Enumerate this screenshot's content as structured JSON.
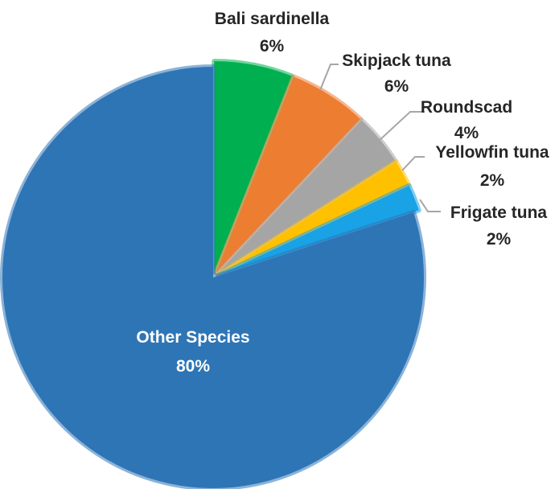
{
  "chart_data": {
    "type": "pie",
    "title": "",
    "start_angle_deg": 0,
    "direction": "clockwise",
    "slices": [
      {
        "label": "Bali sardinella",
        "value": 6,
        "display": "6%",
        "color": "#00b050"
      },
      {
        "label": "Skipjack tuna",
        "value": 6,
        "display": "6%",
        "color": "#ed7d31"
      },
      {
        "label": "Roundscad",
        "value": 4,
        "display": "4%",
        "color": "#a5a5a5"
      },
      {
        "label": "Yellowfin tuna",
        "value": 2,
        "display": "2%",
        "color": "#ffc000"
      },
      {
        "label": "Frigate tuna",
        "value": 2,
        "display": "2%",
        "color": "#1aa2e6"
      },
      {
        "label": "Other Species",
        "value": 80,
        "display": "80%",
        "color": "#2e75b6"
      }
    ],
    "label_text_color": "#262626",
    "inner_label_color": "#ffffff",
    "legend": "none"
  }
}
